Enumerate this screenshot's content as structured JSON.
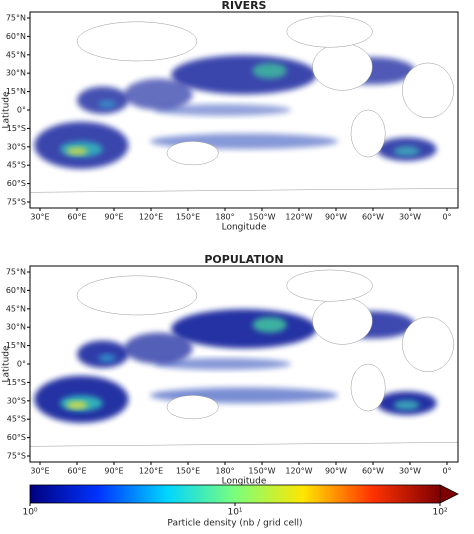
{
  "panels": [
    {
      "title": "RIVERS",
      "xlabel": "Longitude",
      "ylabel": "Latitude",
      "xticks": [
        "30°E",
        "60°E",
        "90°E",
        "120°E",
        "150°E",
        "180°",
        "150°W",
        "120°W",
        "90°W",
        "60°W",
        "30°W",
        "0°"
      ],
      "yticks": [
        "75°N",
        "60°N",
        "45°N",
        "30°N",
        "15°N",
        "0°",
        "15°S",
        "30°S",
        "45°S",
        "60°S",
        "75°S"
      ]
    },
    {
      "title": "POPULATION",
      "xlabel": "Longitude",
      "ylabel": "Latitude",
      "xticks": [
        "30°E",
        "60°E",
        "90°E",
        "120°E",
        "150°E",
        "180°",
        "150°W",
        "120°W",
        "90°W",
        "60°W",
        "30°W",
        "0°"
      ],
      "yticks": [
        "75°N",
        "60°N",
        "45°N",
        "30°N",
        "15°N",
        "0°",
        "15°S",
        "30°S",
        "45°S",
        "60°S",
        "75°S"
      ]
    }
  ],
  "colorbar": {
    "label": "Particle density (nb / grid cell)",
    "ticks": [
      "10⁰",
      "10¹",
      "10²"
    ],
    "colors": [
      "#00007f",
      "#0033ff",
      "#00d5ff",
      "#7bff7b",
      "#ffe600",
      "#ff3300",
      "#7f0000"
    ]
  }
}
